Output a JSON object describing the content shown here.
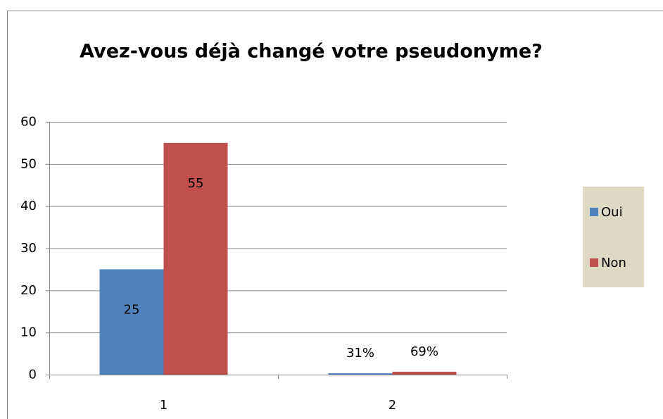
{
  "chart_data": {
    "type": "bar",
    "title": "Avez-vous déjà changé votre pseudonyme?",
    "categories": [
      "1",
      "2"
    ],
    "series": [
      {
        "name": "Oui",
        "color": "#4f81bd",
        "values": [
          25,
          0.31
        ],
        "value_labels": [
          "25",
          "31%"
        ]
      },
      {
        "name": "Non",
        "color": "#c0504d",
        "values": [
          55,
          0.69
        ],
        "value_labels": [
          "55",
          "69%"
        ]
      }
    ],
    "ylim": [
      0,
      60
    ],
    "yticks": [
      0,
      10,
      20,
      30,
      40,
      50,
      60
    ],
    "grid": true,
    "legend": "right"
  }
}
